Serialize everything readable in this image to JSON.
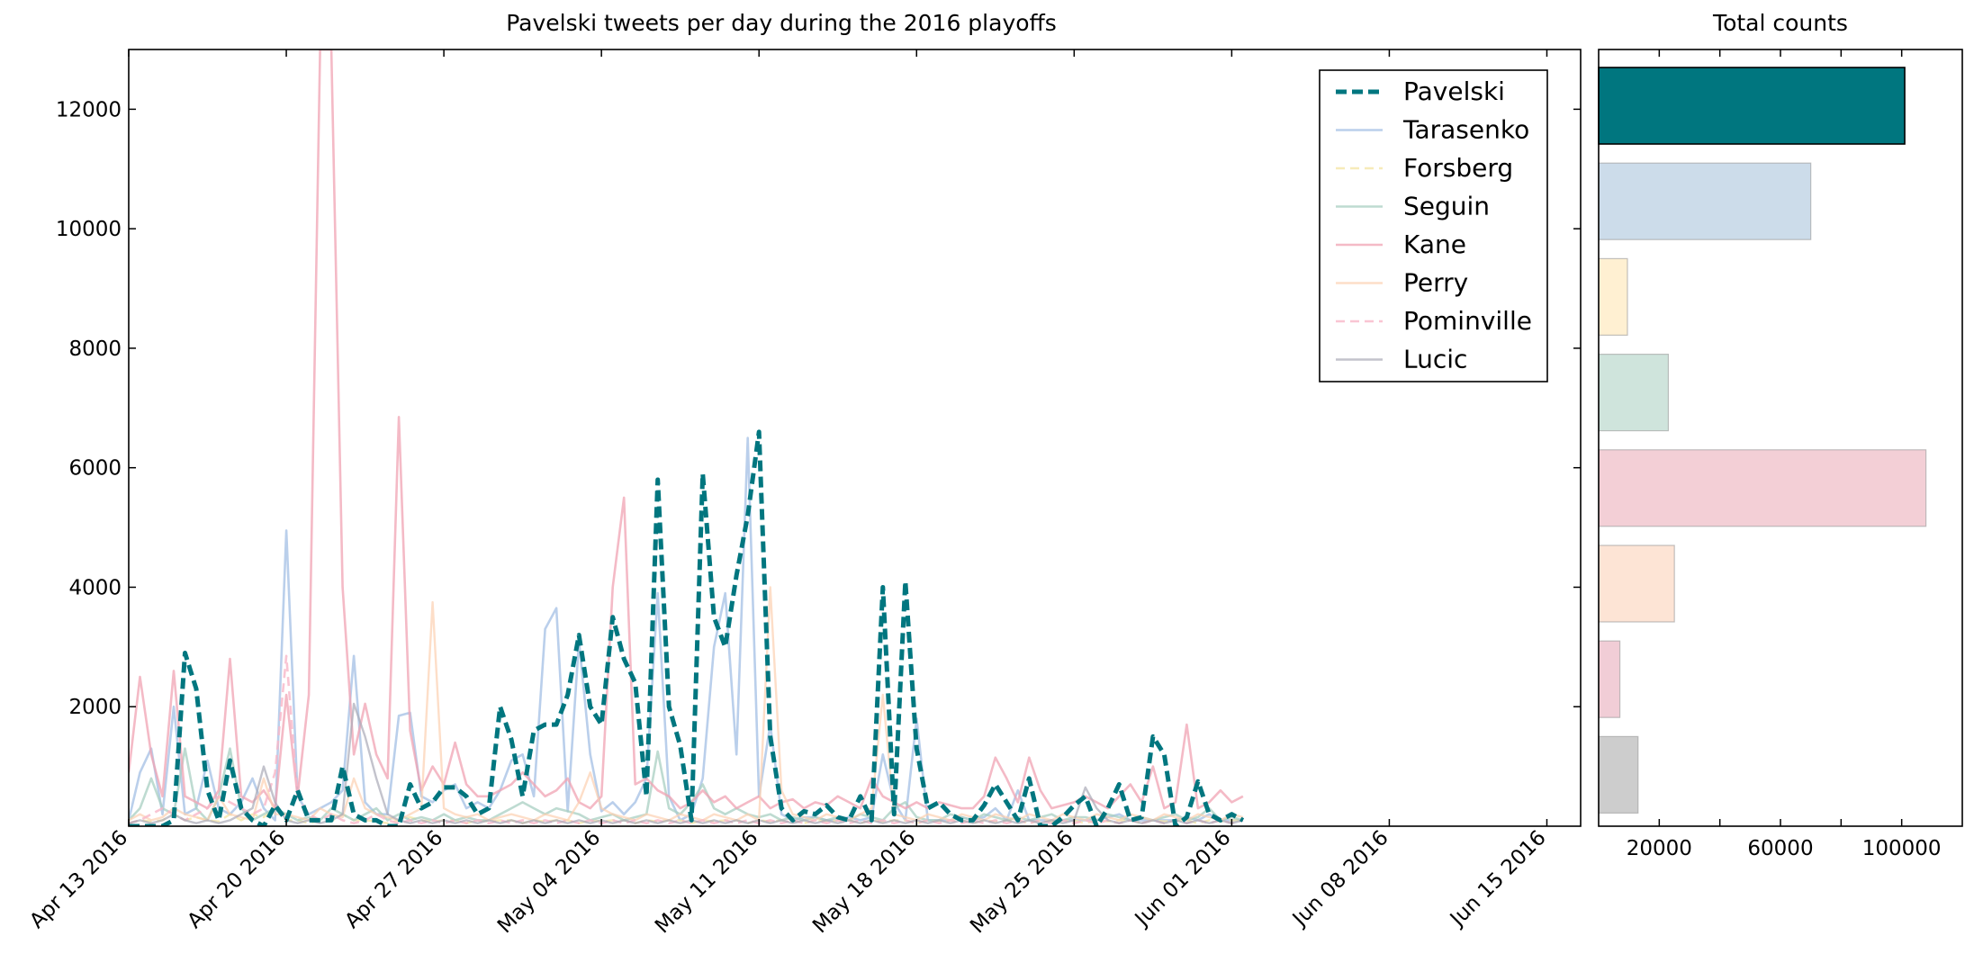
{
  "colors": {
    "Pavelski": "#00767f",
    "Tarasenko": "#aec7e8",
    "Forsberg": "#f5e6a8",
    "Seguin": "#a8cfc1",
    "Kane": "#f0a3b3",
    "Perry": "#fcd0b0",
    "Pominville": "#f7b6c8",
    "Lucic": "#a9a9b6",
    "bar_Tarasenko": "#ccdcea",
    "bar_Forsberg": "#fff0d2",
    "bar_Seguin": "#cfe4dc",
    "bar_Kane": "#f3cfd6",
    "bar_Perry": "#fde4d5",
    "bar_Pominville": "#f1cdd6",
    "bar_Lucic": "#cdcdcd"
  },
  "chart_data": [
    {
      "type": "line",
      "title": "Pavelski tweets per day during the 2016 playoffs",
      "xlabel": "",
      "ylabel": "",
      "start_date": "2016-04-13",
      "xlim": [
        0,
        64.5
      ],
      "ylim": [
        0,
        13000
      ],
      "xticks": [
        0,
        7,
        14,
        21,
        28,
        35,
        42,
        49,
        56,
        63
      ],
      "xtick_labels": [
        "Apr 13 2016",
        "Apr 20 2016",
        "Apr 27 2016",
        "May 04 2016",
        "May 11 2016",
        "May 18 2016",
        "May 25 2016",
        "Jun 01 2016",
        "Jun 08 2016",
        "Jun 15 2016"
      ],
      "yticks": [
        2000,
        4000,
        6000,
        8000,
        10000,
        12000
      ],
      "ytick_labels": [
        "2000",
        "4000",
        "6000",
        "8000",
        "10000",
        "12000"
      ],
      "legend": "top-right",
      "grid": false,
      "series": [
        {
          "name": "Pavelski",
          "style": "dashed",
          "step": 0.5,
          "values": [
            0,
            0,
            0,
            0,
            100,
            2900,
            2300,
            600,
            100,
            1100,
            300,
            100,
            0,
            350,
            100,
            600,
            100,
            100,
            100,
            1000,
            200,
            100,
            100,
            0,
            0,
            700,
            300,
            400,
            650,
            650,
            500,
            200,
            300,
            2000,
            1450,
            500,
            1600,
            1700,
            1700,
            2200,
            3200,
            2000,
            1700,
            3500,
            2800,
            2400,
            500,
            5800,
            2000,
            1350,
            100,
            5900,
            3500,
            3000,
            4200,
            5200,
            6600,
            1500,
            300,
            100,
            250,
            200,
            350,
            150,
            100,
            500,
            100,
            4000,
            200,
            4100,
            1300,
            300,
            400,
            200,
            100,
            100,
            350,
            700,
            400,
            100,
            800,
            0,
            0,
            150,
            350,
            500,
            0,
            300,
            700,
            100,
            150,
            1500,
            1200,
            0,
            150,
            750,
            200,
            100,
            200,
            100
          ]
        },
        {
          "name": "Tarasenko",
          "style": "solid",
          "step": 0.5,
          "values": [
            100,
            900,
            1300,
            200,
            2000,
            200,
            300,
            1100,
            300,
            200,
            400,
            800,
            300,
            100,
            4950,
            500,
            200,
            300,
            400,
            600,
            2850,
            400,
            200,
            200,
            1850,
            1900,
            500,
            400,
            600,
            700,
            300,
            400,
            300,
            600,
            1100,
            1200,
            500,
            3300,
            3650,
            250,
            3100,
            1200,
            250,
            400,
            200,
            400,
            800,
            3900,
            500,
            100,
            200,
            800,
            3000,
            3900,
            1200,
            6500,
            500,
            1700,
            200,
            100,
            150,
            150,
            100,
            100,
            150,
            100,
            150,
            1200,
            400,
            100,
            1800,
            100,
            100,
            100,
            150,
            100,
            150,
            300,
            100,
            600,
            100,
            100,
            100,
            100,
            100,
            100,
            100,
            150,
            200,
            100,
            100,
            100,
            100,
            100,
            150,
            100,
            200,
            100,
            100,
            100
          ]
        },
        {
          "name": "Forsberg",
          "style": "dashed",
          "step": 0.5,
          "values": [
            50,
            100,
            80,
            100,
            200,
            100,
            150,
            100,
            80,
            200,
            100,
            200,
            150,
            300,
            100,
            100,
            50,
            100,
            80,
            200,
            100,
            100,
            80,
            50,
            100,
            150,
            100,
            80,
            100,
            100,
            50,
            100,
            80,
            100,
            100,
            50,
            100,
            80,
            100,
            100,
            50,
            100,
            80,
            100,
            100,
            50,
            100,
            80,
            100,
            100,
            50,
            100,
            80,
            100,
            100,
            50,
            100,
            80,
            100,
            100,
            50,
            100,
            80,
            100,
            100,
            50,
            100,
            80,
            100,
            100,
            50,
            100,
            80,
            100,
            100,
            50,
            100,
            80,
            100,
            100,
            50,
            100,
            80,
            100,
            100,
            50,
            100,
            80,
            100,
            100,
            50,
            100,
            80,
            100,
            100,
            50,
            100,
            80,
            100,
            100
          ]
        },
        {
          "name": "Seguin",
          "style": "solid",
          "step": 0.5,
          "values": [
            100,
            300,
            800,
            300,
            200,
            1300,
            300,
            100,
            500,
            1300,
            300,
            100,
            200,
            300,
            200,
            100,
            150,
            100,
            300,
            200,
            100,
            200,
            300,
            100,
            200,
            100,
            150,
            100,
            200,
            100,
            150,
            100,
            100,
            200,
            300,
            400,
            300,
            200,
            300,
            250,
            200,
            100,
            150,
            200,
            100,
            150,
            200,
            1250,
            300,
            200,
            400,
            700,
            300,
            200,
            300,
            200,
            150,
            200,
            100,
            150,
            100,
            150,
            100,
            150,
            100,
            200,
            150,
            100,
            300,
            400,
            150,
            100,
            100,
            200,
            150,
            100,
            200,
            150,
            100,
            150,
            100,
            150,
            200,
            100,
            150,
            150,
            100,
            200,
            150,
            100,
            150,
            100,
            150,
            200,
            100,
            150,
            300,
            100,
            150,
            100
          ]
        },
        {
          "name": "Kane",
          "style": "solid",
          "step": 0.5,
          "values": [
            900,
            2500,
            1200,
            500,
            2600,
            500,
            400,
            300,
            600,
            2800,
            500,
            400,
            600,
            300,
            2200,
            500,
            2200,
            13000,
            13000,
            4000,
            1200,
            2050,
            1200,
            800,
            6850,
            1600,
            600,
            1000,
            700,
            1400,
            700,
            500,
            500,
            600,
            700,
            900,
            700,
            500,
            600,
            800,
            400,
            300,
            500,
            4000,
            5500,
            700,
            800,
            600,
            500,
            300,
            400,
            600,
            400,
            500,
            300,
            400,
            500,
            300,
            400,
            450,
            300,
            400,
            350,
            500,
            400,
            300,
            800,
            500,
            400,
            300,
            400,
            300,
            400,
            350,
            300,
            300,
            500,
            1150,
            800,
            400,
            1150,
            600,
            300,
            350,
            400,
            500,
            400,
            300,
            500,
            700,
            400,
            1000,
            300,
            400,
            1700,
            300,
            400,
            600,
            400,
            500
          ]
        },
        {
          "name": "Perry",
          "style": "solid",
          "step": 0.5,
          "values": [
            100,
            200,
            100,
            150,
            300,
            200,
            150,
            100,
            500,
            200,
            150,
            100,
            800,
            200,
            200,
            150,
            100,
            300,
            200,
            150,
            800,
            300,
            200,
            150,
            100,
            200,
            300,
            3750,
            300,
            200,
            150,
            200,
            100,
            150,
            200,
            150,
            100,
            200,
            150,
            100,
            400,
            900,
            300,
            200,
            150,
            100,
            200,
            150,
            100,
            200,
            150,
            100,
            200,
            150,
            100,
            200,
            100,
            4000,
            600,
            200,
            150,
            100,
            200,
            150,
            100,
            200,
            300,
            2200,
            200,
            150,
            100,
            200,
            150,
            100,
            200,
            150,
            100,
            200,
            150,
            100,
            200,
            150,
            100,
            200,
            150,
            100,
            200,
            150,
            100,
            200,
            150,
            100,
            200,
            150,
            100,
            200,
            150,
            100,
            200,
            150
          ]
        },
        {
          "name": "Pominville",
          "style": "dashed",
          "step": 0.5,
          "values": [
            50,
            100,
            200,
            300,
            200,
            100,
            200,
            300,
            500,
            400,
            300,
            200,
            300,
            900,
            2850,
            500,
            200,
            100,
            200,
            100,
            50,
            100,
            200,
            100,
            50,
            100,
            50,
            100,
            50,
            100,
            50,
            100,
            50,
            100,
            50,
            100,
            50,
            100,
            50,
            100,
            50,
            100,
            50,
            100,
            50,
            100,
            50,
            100,
            50,
            100,
            50,
            100,
            50,
            100,
            50,
            100,
            50,
            100,
            50,
            100,
            50,
            100,
            50,
            100,
            50,
            100,
            50,
            100,
            50,
            100,
            50,
            100,
            50,
            100,
            50,
            100,
            50,
            100,
            50,
            100,
            50,
            100,
            50,
            100,
            50,
            100,
            50,
            100,
            50,
            100,
            50,
            100,
            50,
            100,
            50,
            100,
            50,
            100,
            50,
            100
          ]
        },
        {
          "name": "Lucic",
          "style": "solid",
          "step": 0.5,
          "values": [
            50,
            100,
            50,
            100,
            200,
            100,
            50,
            100,
            50,
            100,
            200,
            300,
            1000,
            400,
            100,
            50,
            100,
            50,
            100,
            200,
            2050,
            1500,
            800,
            200,
            100,
            50,
            100,
            50,
            100,
            50,
            100,
            50,
            100,
            50,
            100,
            50,
            100,
            50,
            100,
            50,
            100,
            50,
            100,
            50,
            100,
            50,
            100,
            50,
            100,
            50,
            100,
            50,
            100,
            50,
            100,
            50,
            100,
            50,
            100,
            50,
            100,
            50,
            100,
            50,
            100,
            50,
            100,
            50,
            100,
            50,
            100,
            50,
            100,
            50,
            100,
            50,
            100,
            50,
            100,
            50,
            100,
            50,
            100,
            50,
            100,
            650,
            300,
            100,
            50,
            100,
            50,
            100,
            50,
            100,
            50,
            100,
            50,
            100,
            50,
            100
          ]
        }
      ]
    },
    {
      "type": "bar",
      "orientation": "horizontal",
      "title": "Total counts",
      "categories": [
        "Pavelski",
        "Tarasenko",
        "Forsberg",
        "Seguin",
        "Kane",
        "Perry",
        "Pominville",
        "Lucic"
      ],
      "values": [
        101000,
        70000,
        9500,
        23000,
        108000,
        25000,
        7000,
        13000
      ],
      "xlim": [
        0,
        120000
      ],
      "xticks": [
        20000,
        60000,
        100000
      ],
      "xtick_labels": [
        "20000",
        "60000",
        "100000"
      ]
    }
  ]
}
